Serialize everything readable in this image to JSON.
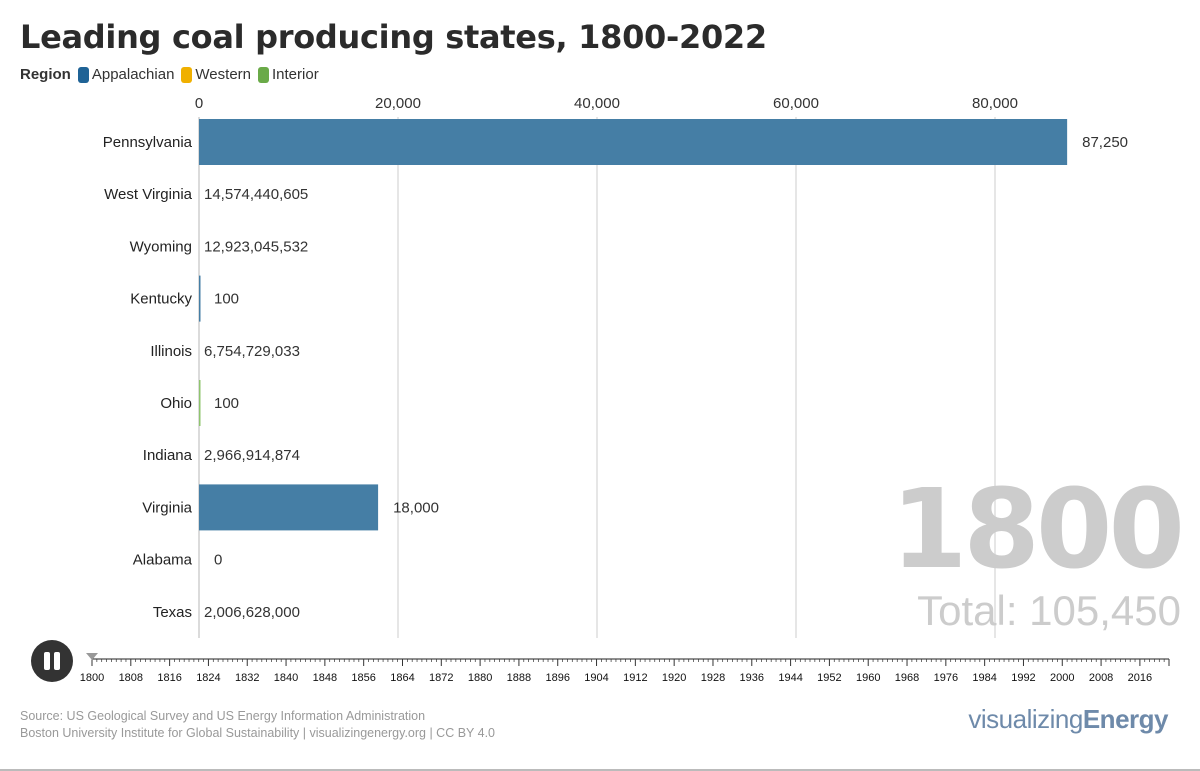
{
  "title": "Leading coal producing states, 1800-2022",
  "legend": {
    "label": "Region",
    "items": [
      {
        "name": "Appalachian",
        "color": "#1f6396"
      },
      {
        "name": "Western",
        "color": "#f0b000"
      },
      {
        "name": "Interior",
        "color": "#6aaa48"
      }
    ]
  },
  "current_year": "1800",
  "total_label": "Total: 105,450",
  "timeline": {
    "start": 1800,
    "end": 2022,
    "current": 1800,
    "tick_labels": [
      "1800",
      "1808",
      "1816",
      "1824",
      "1832",
      "1840",
      "1848",
      "1856",
      "1864",
      "1872",
      "1880",
      "1888",
      "1896",
      "1904",
      "1912",
      "1920",
      "1928",
      "1936",
      "1944",
      "1952",
      "1960",
      "1968",
      "1976",
      "1984",
      "1992",
      "2000",
      "2008",
      "2016"
    ],
    "state": "playing"
  },
  "footer": {
    "source": "Source: US Geological Survey and US Energy Information Administration",
    "credit": "Boston University Institute for Global Sustainability | visualizingenergy.org | CC BY 4.0"
  },
  "brand": {
    "light": "visualizing",
    "bold": "Energy"
  },
  "chart_data": {
    "type": "bar",
    "orientation": "horizontal",
    "title": "Leading coal producing states, 1800-2022",
    "xlabel": "",
    "ylabel": "",
    "xlim": [
      0,
      87250
    ],
    "x_ticks": [
      0,
      20000,
      40000,
      60000,
      80000
    ],
    "x_tick_labels": [
      "0",
      "20,000",
      "40,000",
      "60,000",
      "80,000"
    ],
    "grid": true,
    "legend_position": "top-left",
    "categories": [
      "Pennsylvania",
      "West Virginia",
      "Wyoming",
      "Kentucky",
      "Illinois",
      "Ohio",
      "Indiana",
      "Virginia",
      "Alabama",
      "Texas"
    ],
    "values": [
      87250,
      null,
      null,
      100,
      null,
      100,
      null,
      18000,
      0,
      null
    ],
    "value_labels": [
      "87,250",
      "14,574,440,605",
      "12,923,045,532",
      "100",
      "6,754,729,033",
      "100",
      "2,966,914,874",
      "18,000",
      "0",
      "2,006,628,000"
    ],
    "regions": [
      "Appalachian",
      "Appalachian",
      "Western",
      "Appalachian",
      "Interior",
      "Interior",
      "Interior",
      "Appalachian",
      "Appalachian",
      "Western"
    ],
    "bar_colors": {
      "Appalachian": "#457ea5",
      "Western": "#f0b000",
      "Interior": "#8fc46e"
    }
  }
}
